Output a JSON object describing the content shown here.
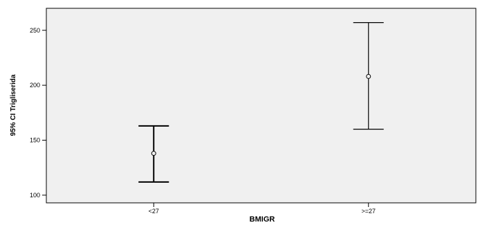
{
  "chart_data": {
    "type": "errorbar",
    "title": "",
    "xlabel": "BMIGR",
    "ylabel": "95% CI Trigliserida",
    "categories": [
      "<27",
      ">=27"
    ],
    "series": [
      {
        "mean": [
          138,
          208
        ],
        "lower": [
          112,
          160
        ],
        "upper": [
          163,
          257
        ]
      }
    ],
    "yticks": [
      100,
      150,
      200,
      250
    ],
    "ylim": [
      93,
      270
    ],
    "grid": false,
    "legend": "none",
    "colors": {
      "plot_background": "#f0f0f0",
      "axis": "#000000",
      "error_bar": "#000000"
    }
  }
}
